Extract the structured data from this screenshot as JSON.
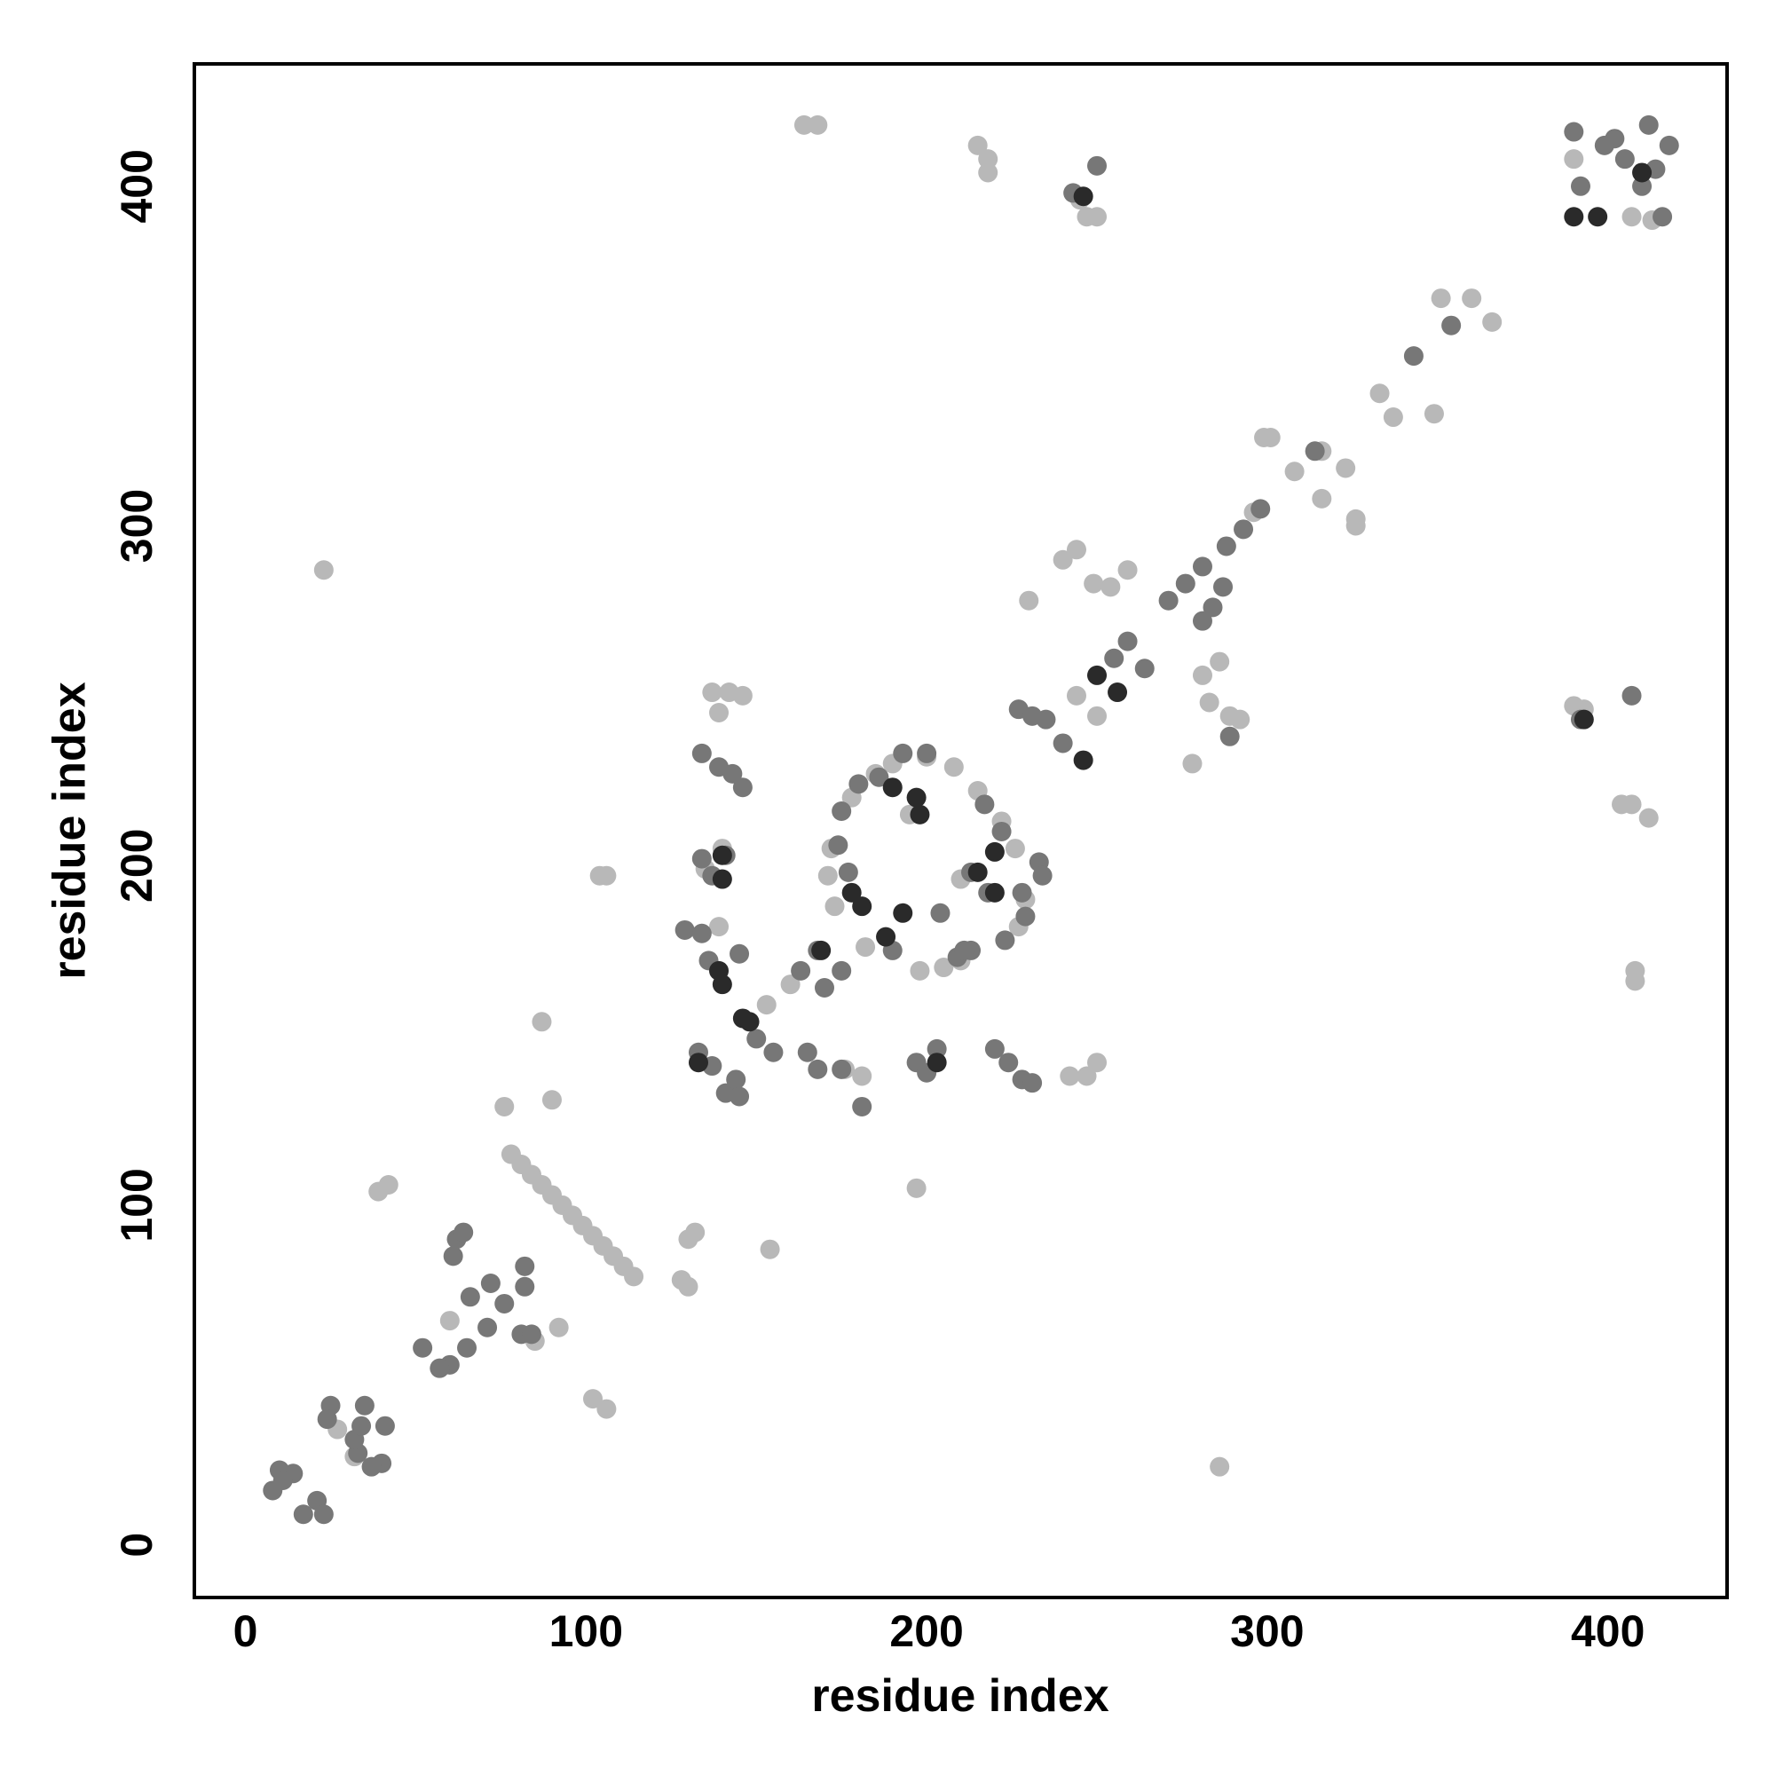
{
  "chart_data": {
    "type": "scatter",
    "xlabel": "residue index",
    "ylabel": "residue index",
    "xlim": [
      -15,
      435
    ],
    "ylim": [
      -15.5,
      436
    ],
    "xticks": [
      0,
      100,
      200,
      300,
      400
    ],
    "yticks": [
      0,
      100,
      200,
      300,
      400
    ],
    "grid": false,
    "series": [
      {
        "color": "#b8b8b8",
        "x": [
          164,
          168,
          215,
          218,
          218,
          245,
          247,
          250,
          390,
          407,
          413,
          23,
          390,
          393,
          404,
          407,
          412,
          408,
          408,
          286,
          351,
          360,
          366,
          349,
          337,
          333,
          323,
          316,
          316,
          308,
          301,
          299,
          326,
          326,
          296,
          244,
          240,
          249,
          254,
          259,
          230,
          281,
          286,
          283,
          289,
          292,
          278,
          244,
          250,
          137,
          142,
          139,
          146,
          104,
          106,
          197,
          154,
          87,
          90,
          76,
          78,
          81,
          84,
          87,
          90,
          93,
          96,
          99,
          102,
          105,
          108,
          111,
          114,
          42,
          39,
          130,
          132,
          128,
          130,
          102,
          106,
          92,
          242,
          247,
          250,
          160,
          153,
          176,
          181,
          32,
          27,
          178,
          185,
          190,
          200,
          208,
          215,
          222,
          226,
          229,
          227,
          210,
          205,
          198,
          182,
          173,
          171,
          172,
          195,
          210,
          135,
          139,
          140,
          85,
          60
        ],
        "y": [
          418,
          418,
          412,
          408,
          404,
          396,
          391,
          391,
          408,
          391,
          390,
          287,
          247,
          246,
          218,
          218,
          214,
          169,
          166,
          23,
          367,
          367,
          360,
          333,
          332,
          339,
          317,
          308,
          322,
          316,
          326,
          326,
          302,
          300,
          304,
          293,
          290,
          283,
          282,
          287,
          278,
          256,
          260,
          248,
          244,
          243,
          230,
          250,
          244,
          251,
          251,
          245,
          250,
          197,
          197,
          105,
          87,
          154,
          131,
          129,
          115,
          112,
          109,
          106,
          103,
          100,
          97,
          94,
          91,
          88,
          85,
          82,
          79,
          106,
          104,
          90,
          92,
          78,
          76,
          43,
          40,
          64,
          138,
          138,
          142,
          165,
          159,
          140,
          138,
          26,
          34,
          220,
          227,
          230,
          232,
          229,
          222,
          213,
          205,
          190,
          182,
          172,
          170,
          169,
          176,
          188,
          197,
          205,
          215,
          196,
          199,
          182,
          205,
          60,
          66
        ]
      },
      {
        "color": "#777777",
        "x": [
          390,
          402,
          412,
          418,
          414,
          399,
          392,
          405,
          410,
          416,
          250,
          243,
          407,
          392,
          343,
          354,
          314,
          298,
          293,
          288,
          281,
          276,
          271,
          281,
          284,
          287,
          259,
          255,
          264,
          227,
          231,
          235,
          240,
          289,
          134,
          139,
          146,
          143,
          134,
          137,
          141,
          129,
          134,
          136,
          145,
          133,
          137,
          141,
          144,
          145,
          150,
          155,
          163,
          168,
          170,
          175,
          165,
          168,
          175,
          181,
          197,
          203,
          200,
          220,
          224,
          228,
          231,
          209,
          213,
          228,
          233,
          234,
          175,
          180,
          186,
          193,
          200,
          217,
          222,
          229,
          223,
          211,
          190,
          177,
          174,
          204,
          213,
          218,
          62,
          61,
          64,
          82,
          72,
          66,
          76,
          71,
          65,
          60,
          57,
          52,
          82,
          81,
          84,
          35,
          41,
          25,
          24,
          33,
          40,
          37,
          32,
          34,
          10,
          14,
          8,
          11,
          17,
          21,
          23
        ],
        "y": [
          416,
          414,
          418,
          412,
          405,
          412,
          400,
          408,
          400,
          391,
          406,
          398,
          250,
          243,
          350,
          359,
          322,
          305,
          299,
          294,
          288,
          283,
          278,
          272,
          276,
          282,
          266,
          261,
          258,
          246,
          244,
          243,
          236,
          238,
          233,
          229,
          223,
          227,
          202,
          197,
          203,
          181,
          180,
          172,
          174,
          145,
          141,
          133,
          137,
          132,
          149,
          145,
          169,
          175,
          164,
          169,
          145,
          140,
          140,
          129,
          142,
          146,
          139,
          146,
          142,
          137,
          136,
          173,
          175,
          192,
          201,
          197,
          216,
          224,
          226,
          233,
          233,
          218,
          210,
          185,
          178,
          175,
          175,
          198,
          206,
          186,
          198,
          192,
          90,
          85,
          92,
          82,
          77,
          73,
          71,
          64,
          58,
          53,
          52,
          58,
          76,
          62,
          62,
          41,
          35,
          41,
          37,
          27,
          24,
          23,
          31,
          35,
          22,
          21,
          16,
          19,
          9,
          13,
          9
        ]
      },
      {
        "color": "#2a2a2a",
        "x": [
          246,
          393,
          250,
          256,
          246,
          140,
          140,
          139,
          140,
          146,
          148,
          169,
          188,
          193,
          181,
          178,
          190,
          197,
          198,
          220,
          220,
          215,
          203,
          133,
          390,
          397,
          410
        ],
        "y": [
          397,
          243,
          256,
          251,
          231,
          203,
          196,
          169,
          165,
          155,
          154,
          175,
          179,
          186,
          188,
          192,
          223,
          220,
          215,
          204,
          192,
          198,
          142,
          142,
          391,
          391,
          404
        ]
      }
    ]
  }
}
